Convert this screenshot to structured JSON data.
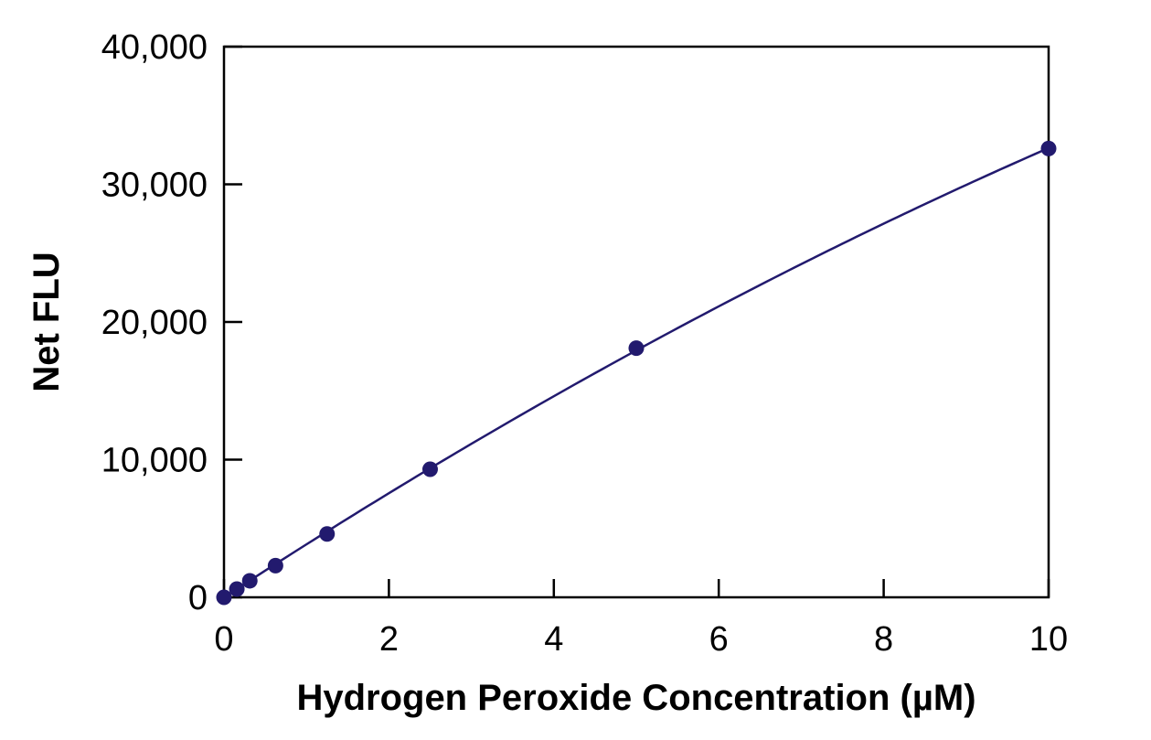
{
  "chart_data": {
    "type": "scatter",
    "title": "",
    "xlabel": "Hydrogen Peroxide Concentration (µM)",
    "ylabel": "Net FLU",
    "xlim": [
      0,
      10
    ],
    "ylim": [
      0,
      40000
    ],
    "x_ticks": [
      {
        "value": 0,
        "label": "0"
      },
      {
        "value": 2,
        "label": "2"
      },
      {
        "value": 4,
        "label": "4"
      },
      {
        "value": 6,
        "label": "6"
      },
      {
        "value": 8,
        "label": "8"
      },
      {
        "value": 10,
        "label": "10"
      }
    ],
    "y_ticks": [
      {
        "value": 0,
        "label": "0"
      },
      {
        "value": 10000,
        "label": "10,000"
      },
      {
        "value": 20000,
        "label": "20,000"
      },
      {
        "value": 30000,
        "label": "30,000"
      },
      {
        "value": 40000,
        "label": "40,000"
      }
    ],
    "grid": false,
    "series": [
      {
        "points": [
          {
            "x": 0,
            "y": 0
          },
          {
            "x": 0.156,
            "y": 600
          },
          {
            "x": 0.313,
            "y": 1200
          },
          {
            "x": 0.625,
            "y": 2300
          },
          {
            "x": 1.25,
            "y": 4600
          },
          {
            "x": 2.5,
            "y": 9300
          },
          {
            "x": 5,
            "y": 18100
          },
          {
            "x": 10,
            "y": 32600
          }
        ],
        "fit_curve": true
      }
    ],
    "colors": {
      "series": "#221a6e",
      "axis": "#000000"
    }
  }
}
